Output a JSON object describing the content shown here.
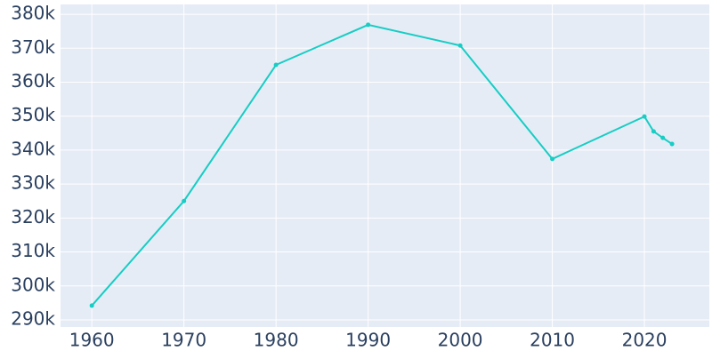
{
  "chart_data": {
    "type": "line",
    "x": [
      1960,
      1970,
      1980,
      1990,
      2000,
      2010,
      2020,
      2021,
      2022,
      2023
    ],
    "series": [
      {
        "color": "#17cdc4",
        "values": [
          294200,
          325000,
          365100,
          376900,
          370800,
          337400,
          349900,
          345500,
          343600,
          341800
        ]
      }
    ],
    "xlim": [
      1956.6,
      2027.05
    ],
    "xticks": [
      1960,
      1970,
      1980,
      1990,
      2000,
      2010,
      2020
    ],
    "ylim": [
      287900,
      382900
    ],
    "yticks": [
      {
        "value": 290000,
        "label": "290k"
      },
      {
        "value": 300000,
        "label": "300k"
      },
      {
        "value": 310000,
        "label": "310k"
      },
      {
        "value": 320000,
        "label": "320k"
      },
      {
        "value": 330000,
        "label": "330k"
      },
      {
        "value": 340000,
        "label": "340k"
      },
      {
        "value": 350000,
        "label": "350k"
      },
      {
        "value": 360000,
        "label": "360k"
      },
      {
        "value": 370000,
        "label": "370k"
      },
      {
        "value": 380000,
        "label": "380k"
      }
    ],
    "grid": true
  }
}
